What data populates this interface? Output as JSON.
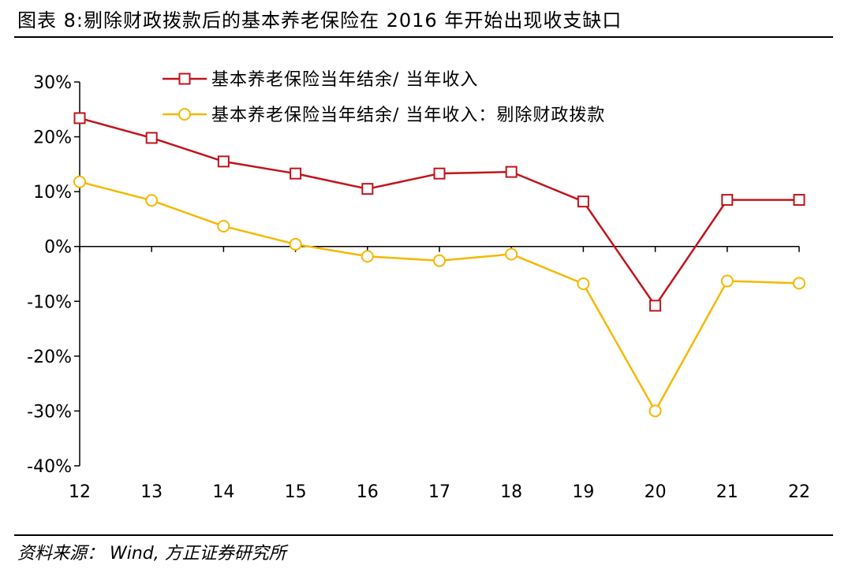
{
  "header": {
    "title": "图表 8:剔除财政拨款后的基本养老保险在 2016 年开始出现收支缺口"
  },
  "footer": {
    "source": "资料来源： Wind, 方正证券研究所"
  },
  "chart_data": {
    "type": "line",
    "title": "图表 8:剔除财政拨款后的基本养老保险在 2016 年开始出现收支缺口",
    "xlabel": "",
    "ylabel": "",
    "categories": [
      "12",
      "13",
      "14",
      "15",
      "16",
      "17",
      "18",
      "19",
      "20",
      "21",
      "22"
    ],
    "ylim": [
      -40,
      30
    ],
    "yticks": [
      30,
      20,
      10,
      0,
      -10,
      -20,
      -30,
      -40
    ],
    "ytick_labels": [
      "30%",
      "20%",
      "10%",
      "0%",
      "-10%",
      "-20%",
      "-30%",
      "-40%"
    ],
    "grid": false,
    "legend_position": "top",
    "series": [
      {
        "name": "基本养老保险当年结余/ 当年收入",
        "color": "#c0141c",
        "marker": "square",
        "values": [
          23.4,
          19.8,
          15.5,
          13.3,
          10.5,
          13.3,
          13.6,
          8.2,
          -10.8,
          8.5,
          8.5
        ]
      },
      {
        "name": "基本养老保险当年结余/ 当年收入：剔除财政拨款",
        "color": "#f5b800",
        "marker": "circle",
        "values": [
          11.8,
          8.4,
          3.7,
          0.4,
          -1.8,
          -2.6,
          -1.4,
          -6.8,
          -30.0,
          -6.3,
          -6.7
        ]
      }
    ]
  }
}
